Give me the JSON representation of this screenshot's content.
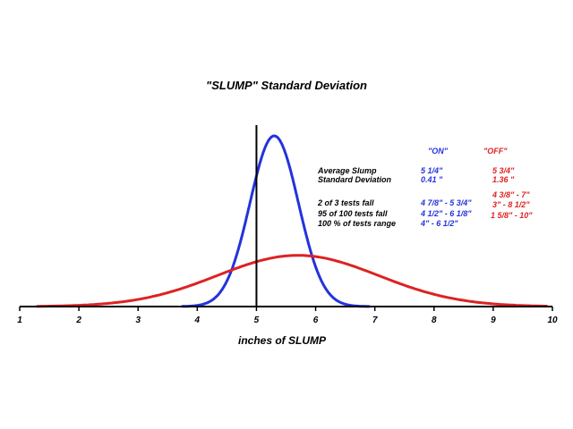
{
  "chart_data": {
    "type": "line",
    "title": "\"SLUMP\" Standard Deviation",
    "xlabel": "inches of SLUMP",
    "ylabel": "",
    "xlim": [
      1,
      10
    ],
    "xticks": [
      "1",
      "2",
      "3",
      "4",
      "5",
      "6",
      "7",
      "8",
      "9",
      "10"
    ],
    "vline_x": 5,
    "grid": false,
    "series": [
      {
        "name": "\"ON\"",
        "color": "#2233dd",
        "distribution": "normal",
        "mean": 5.3,
        "stddev": 0.41,
        "x_start": 3.75,
        "x_end": 6.9,
        "peak": 1.0
      },
      {
        "name": "\"OFF\"",
        "color": "#dd2222",
        "distribution": "normal",
        "mean": 5.7,
        "stddev": 1.36,
        "x_start": 1.3,
        "x_end": 9.9,
        "peak": 0.3
      }
    ],
    "table": {
      "headers": {
        "on": "\"ON\"",
        "off": "\"OFF\""
      },
      "rows": [
        {
          "label": "Average Slump",
          "on": "5 1/4\"",
          "off": "5 3/4\""
        },
        {
          "label": "Standard Deviation",
          "on": "0.41 \"",
          "off": "1.36 \""
        },
        {
          "label": "2  of 3 tests fall",
          "on": "4 7/8\" - 5 3/4\"",
          "off": "4 3/8\" - 7\""
        },
        {
          "label": "95  of 100 tests fall",
          "on": "4 1/2\" - 6 1/8\"",
          "off": "3\" - 8 1/2\""
        },
        {
          "label": "100 % of tests range",
          "on": "4\" - 6 1/2\"",
          "off": "1 5/8\" - 10\""
        }
      ]
    }
  }
}
